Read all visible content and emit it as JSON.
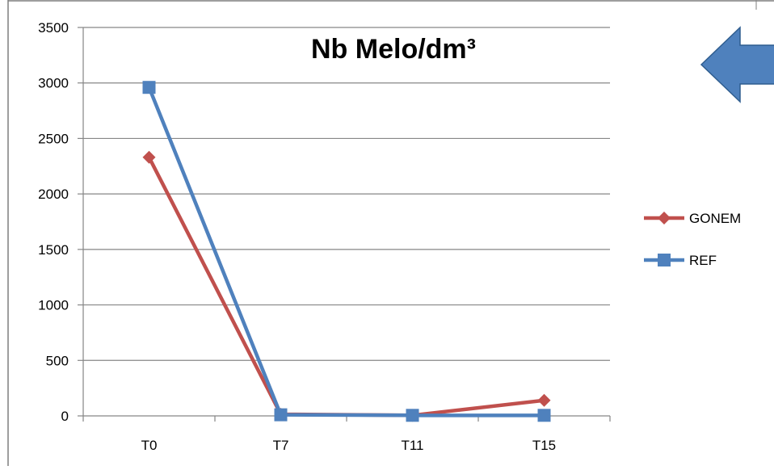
{
  "chart_data": {
    "type": "line",
    "title": "Nb Melo/dm³",
    "categories": [
      "T0",
      "T7",
      "T11",
      "T15"
    ],
    "series": [
      {
        "name": "GONEM",
        "values": [
          2330,
          15,
          5,
          140
        ],
        "color": "#C0504D",
        "marker": "diamond"
      },
      {
        "name": "REF",
        "values": [
          2960,
          10,
          5,
          5
        ],
        "color": "#4F81BD",
        "marker": "square"
      }
    ],
    "ylim": [
      0,
      3500
    ],
    "yticks": [
      0,
      500,
      1000,
      1500,
      2000,
      2500,
      3000,
      3500
    ],
    "grid": true,
    "legend": "right"
  },
  "decorations": {
    "arrow_icon": "left-arrow-icon",
    "arrow_color": "#4F81BD"
  }
}
